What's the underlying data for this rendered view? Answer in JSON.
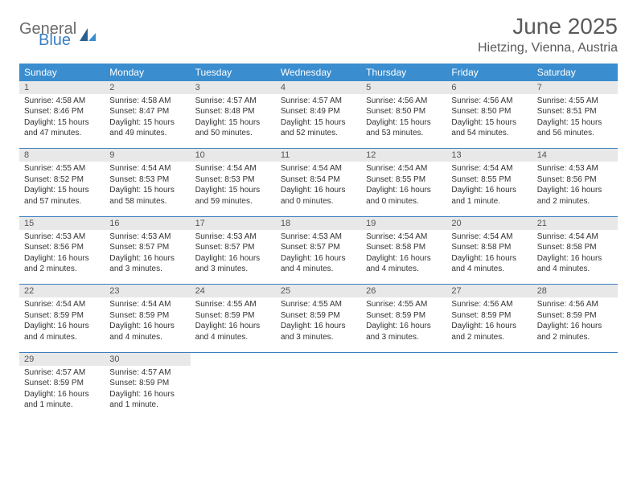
{
  "logo": {
    "word1": "General",
    "word2": "Blue"
  },
  "title": "June 2025",
  "location": "Hietzing, Vienna, Austria",
  "colors": {
    "header_bg": "#3a8dce",
    "header_text": "#ffffff",
    "daynum_bg": "#e8e8e8",
    "rule": "#3a7fbf",
    "body_text": "#333333",
    "title_text": "#5a5a5a",
    "logo_gray": "#6b6b6b",
    "logo_blue": "#3a7fbf"
  },
  "weekdays": [
    "Sunday",
    "Monday",
    "Tuesday",
    "Wednesday",
    "Thursday",
    "Friday",
    "Saturday"
  ],
  "days": [
    {
      "n": "1",
      "sr": "4:58 AM",
      "ss": "8:46 PM",
      "dl": "15 hours and 47 minutes."
    },
    {
      "n": "2",
      "sr": "4:58 AM",
      "ss": "8:47 PM",
      "dl": "15 hours and 49 minutes."
    },
    {
      "n": "3",
      "sr": "4:57 AM",
      "ss": "8:48 PM",
      "dl": "15 hours and 50 minutes."
    },
    {
      "n": "4",
      "sr": "4:57 AM",
      "ss": "8:49 PM",
      "dl": "15 hours and 52 minutes."
    },
    {
      "n": "5",
      "sr": "4:56 AM",
      "ss": "8:50 PM",
      "dl": "15 hours and 53 minutes."
    },
    {
      "n": "6",
      "sr": "4:56 AM",
      "ss": "8:50 PM",
      "dl": "15 hours and 54 minutes."
    },
    {
      "n": "7",
      "sr": "4:55 AM",
      "ss": "8:51 PM",
      "dl": "15 hours and 56 minutes."
    },
    {
      "n": "8",
      "sr": "4:55 AM",
      "ss": "8:52 PM",
      "dl": "15 hours and 57 minutes."
    },
    {
      "n": "9",
      "sr": "4:54 AM",
      "ss": "8:53 PM",
      "dl": "15 hours and 58 minutes."
    },
    {
      "n": "10",
      "sr": "4:54 AM",
      "ss": "8:53 PM",
      "dl": "15 hours and 59 minutes."
    },
    {
      "n": "11",
      "sr": "4:54 AM",
      "ss": "8:54 PM",
      "dl": "16 hours and 0 minutes."
    },
    {
      "n": "12",
      "sr": "4:54 AM",
      "ss": "8:55 PM",
      "dl": "16 hours and 0 minutes."
    },
    {
      "n": "13",
      "sr": "4:54 AM",
      "ss": "8:55 PM",
      "dl": "16 hours and 1 minute."
    },
    {
      "n": "14",
      "sr": "4:53 AM",
      "ss": "8:56 PM",
      "dl": "16 hours and 2 minutes."
    },
    {
      "n": "15",
      "sr": "4:53 AM",
      "ss": "8:56 PM",
      "dl": "16 hours and 2 minutes."
    },
    {
      "n": "16",
      "sr": "4:53 AM",
      "ss": "8:57 PM",
      "dl": "16 hours and 3 minutes."
    },
    {
      "n": "17",
      "sr": "4:53 AM",
      "ss": "8:57 PM",
      "dl": "16 hours and 3 minutes."
    },
    {
      "n": "18",
      "sr": "4:53 AM",
      "ss": "8:57 PM",
      "dl": "16 hours and 4 minutes."
    },
    {
      "n": "19",
      "sr": "4:54 AM",
      "ss": "8:58 PM",
      "dl": "16 hours and 4 minutes."
    },
    {
      "n": "20",
      "sr": "4:54 AM",
      "ss": "8:58 PM",
      "dl": "16 hours and 4 minutes."
    },
    {
      "n": "21",
      "sr": "4:54 AM",
      "ss": "8:58 PM",
      "dl": "16 hours and 4 minutes."
    },
    {
      "n": "22",
      "sr": "4:54 AM",
      "ss": "8:59 PM",
      "dl": "16 hours and 4 minutes."
    },
    {
      "n": "23",
      "sr": "4:54 AM",
      "ss": "8:59 PM",
      "dl": "16 hours and 4 minutes."
    },
    {
      "n": "24",
      "sr": "4:55 AM",
      "ss": "8:59 PM",
      "dl": "16 hours and 4 minutes."
    },
    {
      "n": "25",
      "sr": "4:55 AM",
      "ss": "8:59 PM",
      "dl": "16 hours and 3 minutes."
    },
    {
      "n": "26",
      "sr": "4:55 AM",
      "ss": "8:59 PM",
      "dl": "16 hours and 3 minutes."
    },
    {
      "n": "27",
      "sr": "4:56 AM",
      "ss": "8:59 PM",
      "dl": "16 hours and 2 minutes."
    },
    {
      "n": "28",
      "sr": "4:56 AM",
      "ss": "8:59 PM",
      "dl": "16 hours and 2 minutes."
    },
    {
      "n": "29",
      "sr": "4:57 AM",
      "ss": "8:59 PM",
      "dl": "16 hours and 1 minute."
    },
    {
      "n": "30",
      "sr": "4:57 AM",
      "ss": "8:59 PM",
      "dl": "16 hours and 1 minute."
    }
  ],
  "labels": {
    "sunrise": "Sunrise: ",
    "sunset": "Sunset: ",
    "daylight": "Daylight: "
  }
}
